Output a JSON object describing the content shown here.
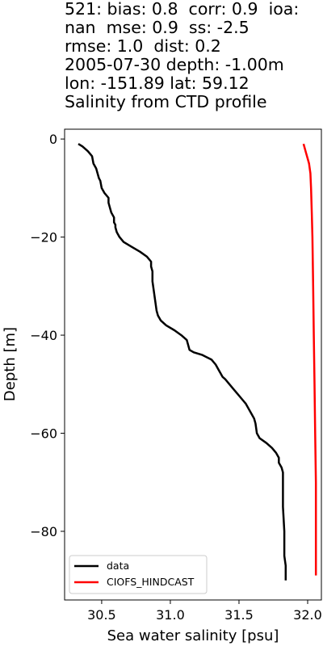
{
  "chart_data": {
    "type": "line",
    "title": [
      "521: bias: 0.8  corr: 0.9  ioa:",
      "nan  mse: 0.9  ss: -2.5",
      "rmse: 1.0  dist: 0.2",
      "2005-07-30 depth: -1.00m",
      "lon: -151.89 lat: 59.12",
      "Salinity from CTD profile"
    ],
    "xlabel": "Sea water salinity [psu]",
    "ylabel": "Depth [m]",
    "xlim": [
      30.23,
      32.1
    ],
    "ylim": [
      -94,
      2
    ],
    "xticks": [
      30.5,
      31.0,
      31.5,
      32.0
    ],
    "xtick_labels": [
      "30.5",
      "31.0",
      "31.5",
      "32.0"
    ],
    "yticks": [
      0,
      -20,
      -40,
      -60,
      -80
    ],
    "ytick_labels": [
      "0",
      "−20",
      "−40",
      "−60",
      "−80"
    ],
    "grid": false,
    "legend_position": "lower-left",
    "series": [
      {
        "name": "data",
        "color": "#000000",
        "x": [
          30.33,
          30.36,
          30.4,
          30.43,
          30.44,
          30.46,
          30.47,
          30.48,
          30.49,
          30.5,
          30.52,
          30.55,
          30.55,
          30.56,
          30.57,
          30.59,
          30.59,
          30.6,
          30.6,
          30.61,
          30.63,
          30.66,
          30.72,
          30.78,
          30.83,
          30.86,
          30.86,
          30.87,
          30.87,
          30.87,
          30.89,
          30.9,
          30.91,
          30.93,
          30.97,
          31.03,
          31.08,
          31.12,
          31.13,
          31.14,
          31.17,
          31.23,
          31.3,
          31.33,
          31.35,
          31.37,
          31.38,
          31.4,
          31.43,
          31.46,
          31.49,
          31.52,
          31.55,
          31.57,
          31.59,
          31.61,
          31.62,
          31.63,
          31.65,
          31.7,
          31.74,
          31.77,
          31.79,
          31.79,
          31.81,
          31.82,
          31.82,
          31.82,
          31.83,
          31.83,
          31.84,
          31.84
        ],
        "y": [
          -1,
          -1.5,
          -2.5,
          -3.5,
          -5,
          -6,
          -7,
          -8,
          -8.5,
          -10,
          -11,
          -12,
          -13,
          -14,
          -15,
          -16,
          -17,
          -17.5,
          -18,
          -19,
          -20,
          -21,
          -22,
          -23,
          -24,
          -25,
          -26,
          -27,
          -28,
          -29,
          -33,
          -35,
          -36,
          -37,
          -38,
          -39,
          -40,
          -41,
          -42,
          -43,
          -43.5,
          -44,
          -45,
          -46,
          -47,
          -48,
          -48.5,
          -49,
          -50,
          -51,
          -52,
          -53,
          -54,
          -55,
          -56,
          -57,
          -58,
          -60,
          -61,
          -62,
          -63,
          -64,
          -65,
          -66,
          -67,
          -68,
          -70,
          -75,
          -80,
          -85,
          -87,
          -90
        ]
      },
      {
        "name": "CIOFS_HINDCAST",
        "color": "#ff0000",
        "x": [
          31.97,
          31.98,
          31.99,
          32.0,
          32.01,
          32.02,
          32.025,
          32.03,
          32.035,
          32.04,
          32.045,
          32.05,
          32.055,
          32.06,
          32.06,
          32.06
        ],
        "y": [
          -1,
          -2,
          -3,
          -4,
          -5,
          -7,
          -10,
          -15,
          -20,
          -30,
          -40,
          -50,
          -60,
          -70,
          -80,
          -89
        ]
      }
    ]
  }
}
